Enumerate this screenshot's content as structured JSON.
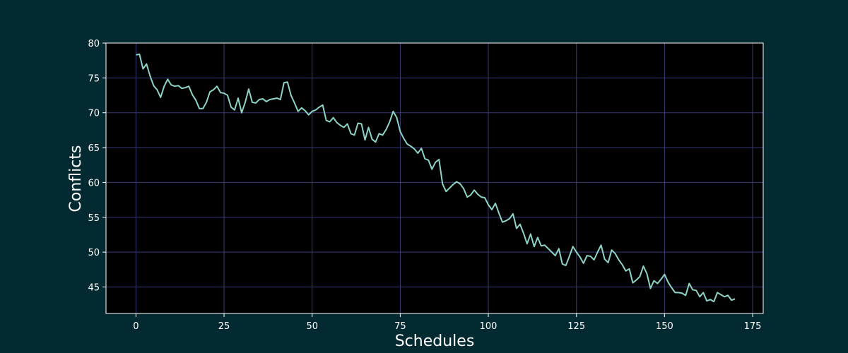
{
  "chart_data": {
    "type": "line",
    "title": "",
    "xlabel": "Schedules",
    "ylabel": "Conflicts",
    "xlim": [
      -8.5,
      178
    ],
    "ylim": [
      41.2,
      80
    ],
    "x_ticks": [
      0,
      25,
      50,
      75,
      100,
      125,
      150,
      175
    ],
    "y_ticks": [
      45,
      50,
      55,
      60,
      65,
      70,
      75,
      80
    ],
    "grid": true,
    "colors": {
      "figure_background": "#042a31",
      "axes_background": "#000000",
      "grid": "#3b3b7a",
      "line": "#8dd3c7",
      "axis_text": "#ffffff"
    },
    "series": [
      {
        "values": [
          78.3,
          78.4,
          76.3,
          77.0,
          75.3,
          73.9,
          73.3,
          72.2,
          73.8,
          74.8,
          74.0,
          73.8,
          73.9,
          73.5,
          73.6,
          73.8,
          72.6,
          71.8,
          70.6,
          70.6,
          71.5,
          73.0,
          73.3,
          73.8,
          72.9,
          72.8,
          72.5,
          70.8,
          70.4,
          72.1,
          70.0,
          71.5,
          73.4,
          71.5,
          71.4,
          71.9,
          72.0,
          71.6,
          71.9,
          72.0,
          72.1,
          71.9,
          74.3,
          74.4,
          72.5,
          71.4,
          70.2,
          70.7,
          70.3,
          69.7,
          70.2,
          70.4,
          70.8,
          71.1,
          68.9,
          68.7,
          69.3,
          68.6,
          68.2,
          67.9,
          68.4,
          67.0,
          66.8,
          68.5,
          68.4,
          66.1,
          67.9,
          66.2,
          65.8,
          67.0,
          66.8,
          67.6,
          68.7,
          70.2,
          69.3,
          67.3,
          66.3,
          65.5,
          65.2,
          64.8,
          64.2,
          64.9,
          63.4,
          63.2,
          61.9,
          62.9,
          63.3,
          59.8,
          58.7,
          59.2,
          59.7,
          60.1,
          59.8,
          59.1,
          57.9,
          58.2,
          58.9,
          58.3,
          57.9,
          57.8,
          56.8,
          56.1,
          57.0,
          55.6,
          54.3,
          54.5,
          54.8,
          55.5,
          53.4,
          54.0,
          52.7,
          51.2,
          52.6,
          50.8,
          52.1,
          50.9,
          51.0,
          50.5,
          50.0,
          49.5,
          50.5,
          48.3,
          48.1,
          49.4,
          50.8,
          50.0,
          49.3,
          48.4,
          49.5,
          49.4,
          48.9,
          50.0,
          51.0,
          49.0,
          48.5,
          50.3,
          49.8,
          48.9,
          48.2,
          47.3,
          47.6,
          45.6,
          46.0,
          46.5,
          48.0,
          46.9,
          44.8,
          45.9,
          45.5,
          46.1,
          46.8,
          45.7,
          44.9,
          44.2,
          44.2,
          44.1,
          43.8,
          45.5,
          44.6,
          44.5,
          43.6,
          44.2,
          43.0,
          43.2,
          42.9,
          44.2,
          43.9,
          43.6,
          43.8,
          43.1,
          43.3
        ]
      }
    ]
  }
}
